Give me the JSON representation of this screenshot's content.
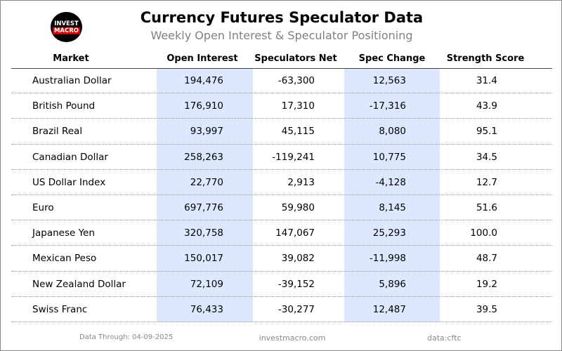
{
  "logo": {
    "line1": "INVEST",
    "line2": "MACRO"
  },
  "title": "Currency Futures Speculator Data",
  "subtitle": "Weekly Open Interest & Speculator Positioning",
  "footer": {
    "date": "Data Through: 04-09-2025",
    "site": "investmacro.com",
    "source": "data:cftc"
  },
  "chart_data": {
    "type": "table",
    "columns": [
      "Market",
      "Open Interest",
      "Speculators Net",
      "Spec Change",
      "Strength Score"
    ],
    "rows": [
      [
        "Australian Dollar",
        "194,476",
        "-63,300",
        "12,563",
        "31.4"
      ],
      [
        "British Pound",
        "176,910",
        "17,310",
        "-17,316",
        "43.9"
      ],
      [
        "Brazil Real",
        "93,997",
        "45,115",
        "8,080",
        "95.1"
      ],
      [
        "Canadian Dollar",
        "258,263",
        "-119,241",
        "10,775",
        "34.5"
      ],
      [
        "US Dollar Index",
        "22,770",
        "2,913",
        "-4,128",
        "12.7"
      ],
      [
        "Euro",
        "697,776",
        "59,980",
        "8,145",
        "51.6"
      ],
      [
        "Japanese Yen",
        "320,758",
        "147,067",
        "25,293",
        "100.0"
      ],
      [
        "Mexican Peso",
        "150,017",
        "39,082",
        "-11,998",
        "48.7"
      ],
      [
        "New Zealand Dollar",
        "72,109",
        "-39,152",
        "5,896",
        "19.2"
      ],
      [
        "Swiss Franc",
        "76,433",
        "-30,277",
        "12,487",
        "39.5"
      ]
    ],
    "highlight_color": "#dce8fd"
  }
}
